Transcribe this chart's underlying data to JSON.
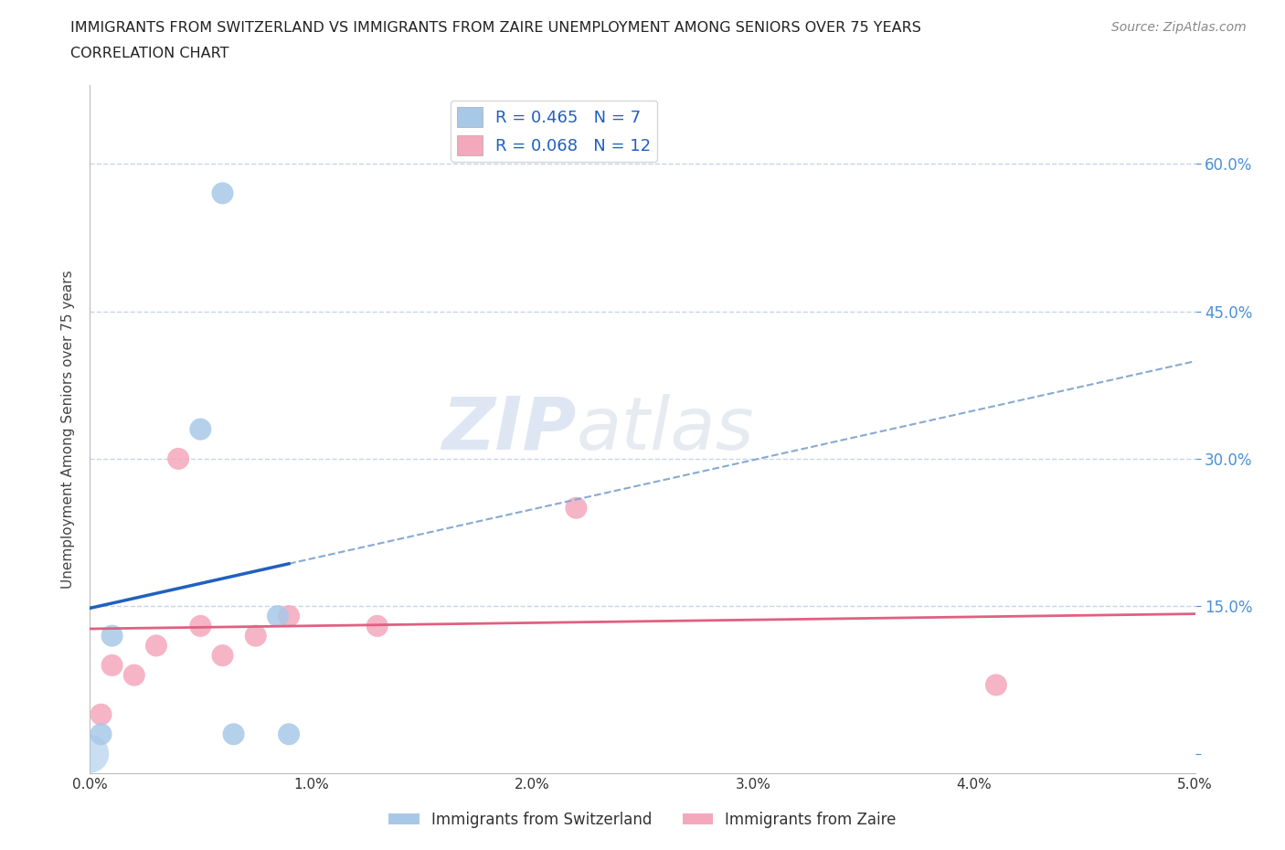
{
  "title_line1": "IMMIGRANTS FROM SWITZERLAND VS IMMIGRANTS FROM ZAIRE UNEMPLOYMENT AMONG SENIORS OVER 75 YEARS",
  "title_line2": "CORRELATION CHART",
  "source": "Source: ZipAtlas.com",
  "ylabel": "Unemployment Among Seniors over 75 years",
  "xlim": [
    0.0,
    0.05
  ],
  "ylim": [
    -0.02,
    0.68
  ],
  "xticks": [
    0.0,
    0.01,
    0.02,
    0.03,
    0.04,
    0.05
  ],
  "yticks": [
    0.0,
    0.15,
    0.3,
    0.45,
    0.6
  ],
  "ytick_labels_right": [
    "",
    "15.0%",
    "30.0%",
    "45.0%",
    "60.0%"
  ],
  "xtick_labels": [
    "0.0%",
    "1.0%",
    "2.0%",
    "3.0%",
    "4.0%",
    "5.0%"
  ],
  "switzerland_x": [
    0.0005,
    0.001,
    0.005,
    0.006,
    0.0065,
    0.0085,
    0.009
  ],
  "switzerland_y": [
    0.02,
    0.12,
    0.33,
    0.57,
    0.02,
    0.14,
    0.02
  ],
  "zaire_x": [
    0.0005,
    0.001,
    0.002,
    0.003,
    0.004,
    0.005,
    0.006,
    0.0075,
    0.009,
    0.013,
    0.022,
    0.041
  ],
  "zaire_y": [
    0.04,
    0.09,
    0.08,
    0.11,
    0.3,
    0.13,
    0.1,
    0.12,
    0.14,
    0.13,
    0.25,
    0.07
  ],
  "switzerland_color": "#a8c8e8",
  "zaire_color": "#f4a8bc",
  "switzerland_line_color": "#2060c0",
  "zaire_line_color": "#e06080",
  "dashed_color": "#88aad0",
  "R_switzerland": 0.465,
  "N_switzerland": 7,
  "R_zaire": 0.068,
  "N_zaire": 12,
  "legend_label_switzerland": "Immigrants from Switzerland",
  "legend_label_zaire": "Immigrants from Zaire",
  "watermark_zip": "ZIP",
  "watermark_atlas": "atlas",
  "background_color": "#ffffff",
  "grid_color": "#c8d4e8",
  "marker_size": 300,
  "title_color": "#222222",
  "axis_label_color": "#444444",
  "tick_color_right": "#4a90d9",
  "tick_color_bottom": "#333333",
  "legend_text_color": "#2060c0"
}
